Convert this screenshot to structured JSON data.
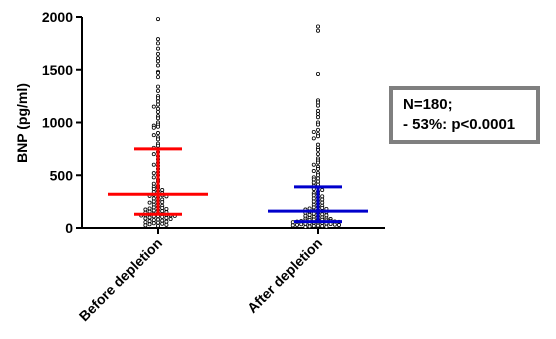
{
  "chart_data": {
    "type": "scatter",
    "subtype": "dot-plot with median and interquartile range",
    "ylabel": "BNP (pg/ml)",
    "ylim": [
      0,
      2000
    ],
    "yticks": [
      0,
      500,
      1000,
      1500,
      2000
    ],
    "ytick_labels": [
      "0",
      "500",
      "1000",
      "1500",
      "2000"
    ],
    "grid": false,
    "categories": [
      "Before depletion",
      "After depletion"
    ],
    "series": [
      {
        "category": "Before depletion",
        "color": "#ff0000",
        "median": 320,
        "q1": 130,
        "q3": 750,
        "points": [
          1980,
          1790,
          1750,
          1700,
          1650,
          1610,
          1580,
          1540,
          1480,
          1470,
          1430,
          1340,
          1300,
          1250,
          1230,
          1200,
          1170,
          1150,
          1130,
          1100,
          1060,
          1040,
          1000,
          980,
          970,
          960,
          950,
          900,
          880,
          860,
          840,
          800,
          780,
          760,
          720,
          700,
          680,
          650,
          620,
          600,
          590,
          560,
          530,
          520,
          500,
          480,
          460,
          440,
          420,
          400,
          390,
          380,
          370,
          360,
          350,
          340,
          330,
          320,
          315,
          310,
          305,
          300,
          290,
          280,
          270,
          260,
          250,
          245,
          240,
          230,
          220,
          210,
          200,
          195,
          190,
          185,
          180,
          175,
          170,
          165,
          160,
          155,
          150,
          145,
          140,
          135,
          130,
          128,
          125,
          122,
          120,
          118,
          115,
          112,
          110,
          105,
          100,
          95,
          90,
          85,
          80,
          75,
          70,
          65,
          60,
          55,
          50,
          45,
          40,
          35,
          30,
          25,
          20
        ]
      },
      {
        "category": "After depletion",
        "color": "#0000cc",
        "median": 160,
        "q1": 60,
        "q3": 390,
        "points": [
          1910,
          1870,
          1460,
          1210,
          1190,
          1160,
          1110,
          1080,
          1050,
          1000,
          980,
          930,
          910,
          890,
          870,
          850,
          790,
          760,
          740,
          700,
          660,
          640,
          620,
          600,
          580,
          560,
          540,
          520,
          500,
          480,
          470,
          460,
          440,
          430,
          410,
          400,
          385,
          370,
          360,
          345,
          330,
          320,
          310,
          300,
          290,
          280,
          270,
          260,
          250,
          240,
          230,
          220,
          210,
          200,
          195,
          190,
          185,
          180,
          175,
          170,
          165,
          160,
          155,
          150,
          145,
          140,
          135,
          130,
          125,
          120,
          115,
          110,
          105,
          100,
          95,
          90,
          88,
          85,
          82,
          80,
          78,
          75,
          72,
          70,
          68,
          65,
          62,
          60,
          58,
          55,
          52,
          50,
          48,
          45,
          42,
          40,
          38,
          35,
          32,
          30,
          28,
          25,
          22,
          20,
          18,
          15,
          12,
          10
        ]
      }
    ]
  },
  "annotation": {
    "line1": "N=180;",
    "line2": "- 53%: p<0.0001",
    "border_color": "#7f7f7f"
  }
}
